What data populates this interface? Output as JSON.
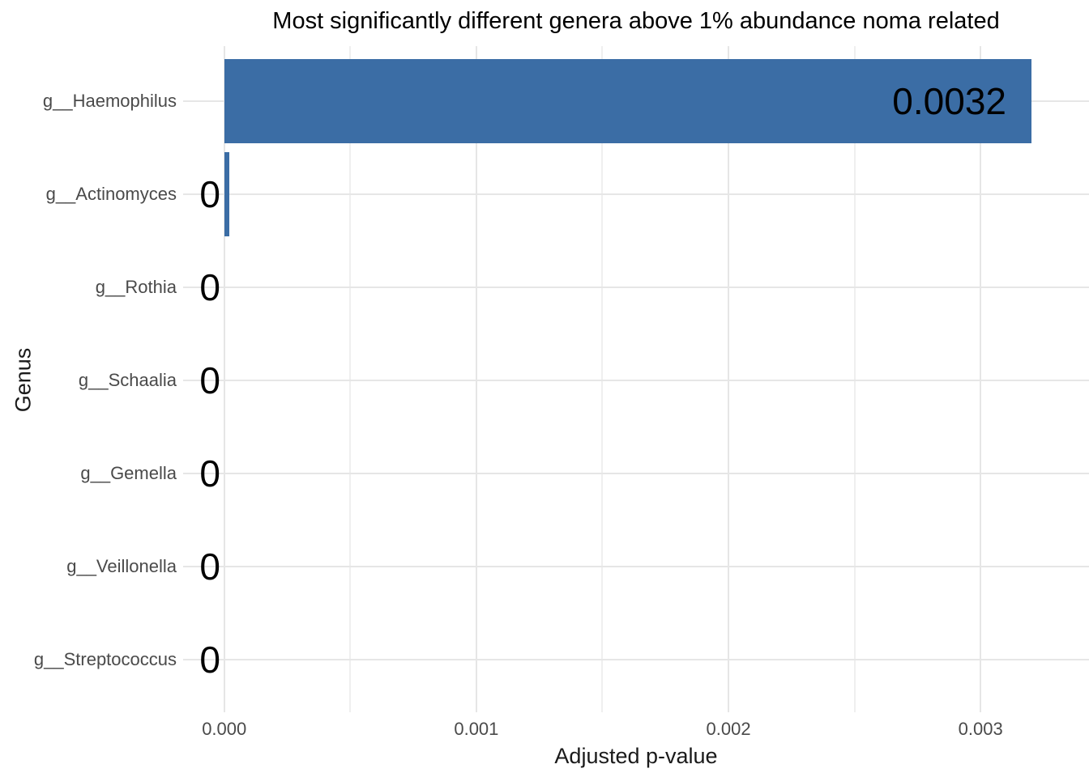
{
  "chart_data": {
    "type": "bar",
    "orientation": "horizontal",
    "title": "Most significantly different genera above 1% abundance noma related",
    "xlabel": "Adjusted p-value",
    "ylabel": "Genus",
    "categories": [
      "g__Haemophilus",
      "g__Actinomyces",
      "g__Rothia",
      "g__Schaalia",
      "g__Gemella",
      "g__Veillonella",
      "g__Streptococcus"
    ],
    "values": [
      0.0032,
      2e-05,
      0,
      0,
      0,
      0,
      0
    ],
    "bar_labels": [
      "0.0032",
      "0",
      "0",
      "0",
      "0",
      "0",
      "0"
    ],
    "xlim": [
      -0.000163,
      0.00343
    ],
    "x_major_ticks": [
      0,
      0.001,
      0.002,
      0.003
    ],
    "x_tick_labels": [
      "0.000",
      "0.001",
      "0.002",
      "0.003"
    ],
    "x_minor_ticks": [
      0.0005,
      0.0015,
      0.0025
    ],
    "grid": true,
    "legend": false,
    "background_color": "#FFFFFF",
    "bar_color": "#3B6DA5",
    "grid_major_color": "#E6E6E6",
    "grid_minor_color": "#EFEFEF",
    "tick_label_color": "#4A4A4A",
    "text_color": "#000000"
  }
}
